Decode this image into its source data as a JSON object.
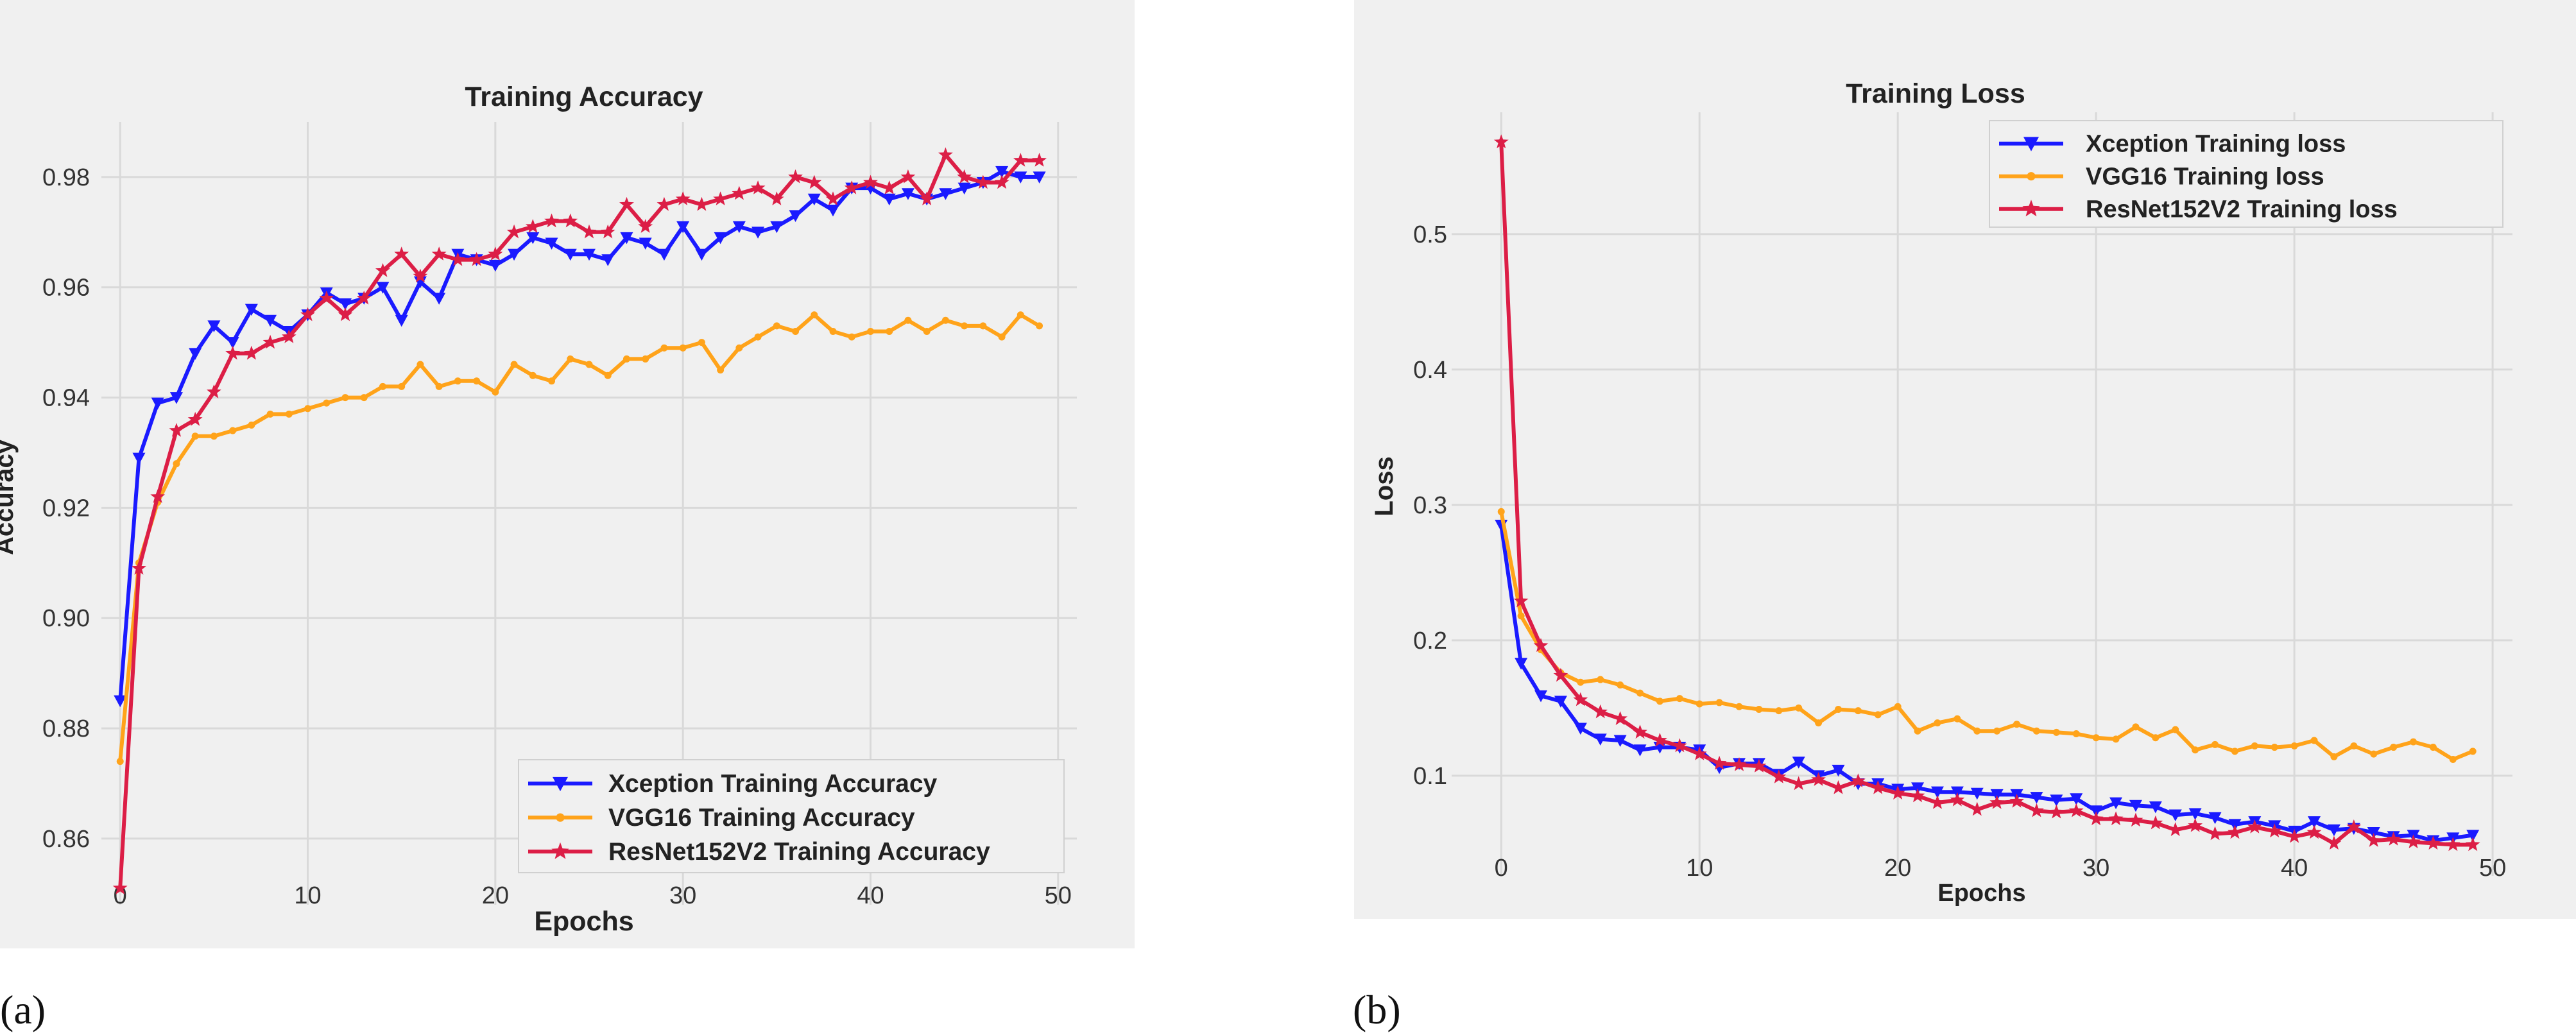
{
  "figure": {
    "panel_labels": [
      "(a)",
      "(b)"
    ]
  },
  "chart_data": [
    {
      "type": "line",
      "title": "Training Accuracy",
      "xlabel": "Epochs",
      "ylabel": "Accuracy",
      "xlim": [
        -1,
        51
      ],
      "ylim": [
        0.848,
        0.99
      ],
      "xticks": [
        0,
        10,
        20,
        30,
        40,
        50
      ],
      "yticks": [
        0.86,
        0.88,
        0.9,
        0.92,
        0.94,
        0.96,
        0.98
      ],
      "ytick_labels": [
        "0.86",
        "0.88",
        "0.90",
        "0.92",
        "0.94",
        "0.96",
        "0.98"
      ],
      "grid": true,
      "legend_position": "lower-right",
      "x": [
        0,
        1,
        2,
        3,
        4,
        5,
        6,
        7,
        8,
        9,
        10,
        11,
        12,
        13,
        14,
        15,
        16,
        17,
        18,
        19,
        20,
        21,
        22,
        23,
        24,
        25,
        26,
        27,
        28,
        29,
        30,
        31,
        32,
        33,
        34,
        35,
        36,
        37,
        38,
        39,
        40,
        41,
        42,
        43,
        44,
        45,
        46,
        47,
        48,
        49
      ],
      "series": [
        {
          "name": "Xception Training Accuracy",
          "color": "#1a1aff",
          "marker": "triangle-down",
          "values": [
            0.885,
            0.929,
            0.939,
            0.94,
            0.948,
            0.953,
            0.95,
            0.956,
            0.954,
            0.952,
            0.955,
            0.959,
            0.957,
            0.958,
            0.96,
            0.954,
            0.961,
            0.958,
            0.966,
            0.965,
            0.964,
            0.966,
            0.969,
            0.968,
            0.966,
            0.966,
            0.965,
            0.969,
            0.968,
            0.966,
            0.971,
            0.966,
            0.969,
            0.971,
            0.97,
            0.971,
            0.973,
            0.976,
            0.974,
            0.978,
            0.978,
            0.976,
            0.977,
            0.976,
            0.977,
            0.978,
            0.979,
            0.981,
            0.98,
            0.98
          ]
        },
        {
          "name": "VGG16 Training Accuracy",
          "color": "#ffa31a",
          "marker": "point",
          "values": [
            0.874,
            0.91,
            0.921,
            0.928,
            0.933,
            0.933,
            0.934,
            0.935,
            0.937,
            0.937,
            0.938,
            0.939,
            0.94,
            0.94,
            0.942,
            0.942,
            0.946,
            0.942,
            0.943,
            0.943,
            0.941,
            0.946,
            0.944,
            0.943,
            0.947,
            0.946,
            0.944,
            0.947,
            0.947,
            0.949,
            0.949,
            0.95,
            0.945,
            0.949,
            0.951,
            0.953,
            0.952,
            0.955,
            0.952,
            0.951,
            0.952,
            0.952,
            0.954,
            0.952,
            0.954,
            0.953,
            0.953,
            0.951,
            0.955,
            0.953
          ]
        },
        {
          "name": "ResNet152V2 Training Accuracy",
          "color": "#dc1e46",
          "marker": "star",
          "values": [
            0.851,
            0.909,
            0.922,
            0.934,
            0.936,
            0.941,
            0.948,
            0.948,
            0.95,
            0.951,
            0.955,
            0.958,
            0.955,
            0.958,
            0.963,
            0.966,
            0.962,
            0.966,
            0.965,
            0.965,
            0.966,
            0.97,
            0.971,
            0.972,
            0.972,
            0.97,
            0.97,
            0.975,
            0.971,
            0.975,
            0.976,
            0.975,
            0.976,
            0.977,
            0.978,
            0.976,
            0.98,
            0.979,
            0.976,
            0.978,
            0.979,
            0.978,
            0.98,
            0.976,
            0.984,
            0.98,
            0.979,
            0.979,
            0.983,
            0.983
          ]
        }
      ]
    },
    {
      "type": "line",
      "title": "Training Loss",
      "xlabel": "Epochs",
      "ylabel": "Loss",
      "xlim": [
        -2.5,
        51
      ],
      "ylim": [
        0.026,
        0.59
      ],
      "xticks": [
        0,
        10,
        20,
        30,
        40,
        50
      ],
      "yticks": [
        0.1,
        0.2,
        0.3,
        0.4,
        0.5
      ],
      "ytick_labels": [
        "0.1",
        "0.2",
        "0.3",
        "0.4",
        "0.5"
      ],
      "grid": true,
      "legend_position": "top-right",
      "x": [
        0,
        1,
        2,
        3,
        4,
        5,
        6,
        7,
        8,
        9,
        10,
        11,
        12,
        13,
        14,
        15,
        16,
        17,
        18,
        19,
        20,
        21,
        22,
        23,
        24,
        25,
        26,
        27,
        28,
        29,
        30,
        31,
        32,
        33,
        34,
        35,
        36,
        37,
        38,
        39,
        40,
        41,
        42,
        43,
        44,
        45,
        46,
        47,
        48,
        49
      ],
      "series": [
        {
          "name": "Xception Training loss",
          "color": "#1a1aff",
          "marker": "triangle-down",
          "values": [
            0.285,
            0.183,
            0.159,
            0.155,
            0.135,
            0.127,
            0.126,
            0.119,
            0.121,
            0.121,
            0.119,
            0.106,
            0.109,
            0.109,
            0.101,
            0.11,
            0.1,
            0.104,
            0.094,
            0.094,
            0.09,
            0.091,
            0.088,
            0.088,
            0.087,
            0.086,
            0.086,
            0.084,
            0.082,
            0.083,
            0.074,
            0.08,
            0.078,
            0.077,
            0.071,
            0.072,
            0.069,
            0.064,
            0.066,
            0.063,
            0.059,
            0.066,
            0.06,
            0.061,
            0.058,
            0.055,
            0.056,
            0.052,
            0.054,
            0.056
          ]
        },
        {
          "name": "VGG16 Training loss",
          "color": "#ffa31a",
          "marker": "point",
          "values": [
            0.295,
            0.218,
            0.193,
            0.176,
            0.169,
            0.171,
            0.167,
            0.161,
            0.155,
            0.157,
            0.153,
            0.154,
            0.151,
            0.149,
            0.148,
            0.15,
            0.139,
            0.149,
            0.148,
            0.145,
            0.151,
            0.133,
            0.139,
            0.142,
            0.133,
            0.133,
            0.138,
            0.133,
            0.132,
            0.131,
            0.128,
            0.127,
            0.136,
            0.128,
            0.134,
            0.119,
            0.123,
            0.118,
            0.122,
            0.121,
            0.122,
            0.126,
            0.114,
            0.122,
            0.116,
            0.121,
            0.125,
            0.121,
            0.112,
            0.118
          ]
        },
        {
          "name": "ResNet152V2 Training loss",
          "color": "#dc1e46",
          "marker": "star",
          "values": [
            0.568,
            0.229,
            0.196,
            0.174,
            0.156,
            0.147,
            0.142,
            0.132,
            0.126,
            0.122,
            0.116,
            0.109,
            0.108,
            0.107,
            0.099,
            0.094,
            0.097,
            0.091,
            0.096,
            0.091,
            0.087,
            0.085,
            0.08,
            0.082,
            0.075,
            0.08,
            0.081,
            0.074,
            0.073,
            0.074,
            0.068,
            0.068,
            0.067,
            0.065,
            0.06,
            0.063,
            0.057,
            0.058,
            0.062,
            0.059,
            0.055,
            0.058,
            0.05,
            0.062,
            0.052,
            0.053,
            0.051,
            0.05,
            0.049,
            0.049
          ]
        }
      ]
    }
  ]
}
